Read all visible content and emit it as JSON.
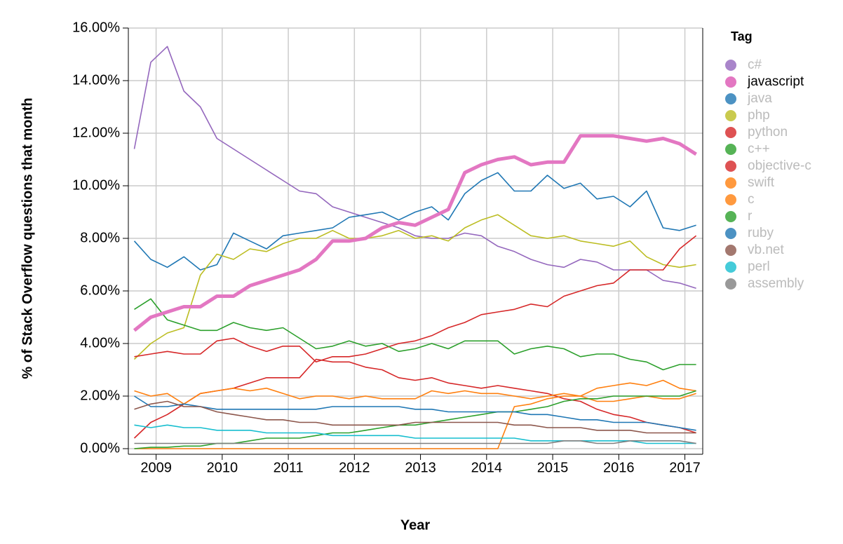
{
  "chart_data": {
    "type": "line",
    "y_label": "% of Stack Overflow questions that month",
    "x_label": "Year",
    "legend_title": "Tag",
    "legend_position": "right",
    "grid": true,
    "xlim": [
      2008.58,
      2017.27
    ],
    "xticks": [
      2009,
      2010,
      2011,
      2012,
      2013,
      2014,
      2015,
      2016,
      2017
    ],
    "ylim": [
      0,
      16
    ],
    "yticks": [
      {
        "value": 0,
        "label": "0.00%"
      },
      {
        "value": 2,
        "label": "2.00%"
      },
      {
        "value": 4,
        "label": "4.00%"
      },
      {
        "value": 6,
        "label": "6.00%"
      },
      {
        "value": 8,
        "label": "8.00%"
      },
      {
        "value": 10,
        "label": "10.00%"
      },
      {
        "value": 12,
        "label": "12.00%"
      },
      {
        "value": 14,
        "label": "14.00%"
      },
      {
        "value": 16,
        "label": "16.00%"
      }
    ],
    "x": [
      2008.67,
      2008.92,
      2009.17,
      2009.42,
      2009.67,
      2009.92,
      2010.17,
      2010.42,
      2010.67,
      2010.92,
      2011.17,
      2011.42,
      2011.67,
      2011.92,
      2012.17,
      2012.42,
      2012.67,
      2012.92,
      2013.17,
      2013.42,
      2013.67,
      2013.92,
      2014.17,
      2014.42,
      2014.67,
      2014.92,
      2015.17,
      2015.42,
      2015.67,
      2015.92,
      2016.17,
      2016.42,
      2016.67,
      2016.92,
      2017.17
    ],
    "series": [
      {
        "name": "c#",
        "color": "#9467bd",
        "values": [
          11.4,
          14.7,
          15.3,
          13.6,
          13.0,
          11.8,
          11.4,
          11.0,
          10.6,
          10.2,
          9.8,
          9.7,
          9.2,
          9.0,
          8.8,
          8.6,
          8.4,
          8.1,
          8.0,
          8.0,
          8.2,
          8.1,
          7.7,
          7.5,
          7.2,
          7.0,
          6.9,
          7.2,
          7.1,
          6.8,
          6.8,
          6.8,
          6.4,
          6.3,
          6.1
        ]
      },
      {
        "name": "javascript",
        "color": "#e377c2",
        "highlighted": true,
        "values": [
          4.5,
          5.0,
          5.2,
          5.4,
          5.4,
          5.8,
          5.8,
          6.2,
          6.4,
          6.6,
          6.8,
          7.2,
          7.9,
          7.9,
          8.0,
          8.4,
          8.6,
          8.5,
          8.8,
          9.1,
          10.5,
          10.8,
          11.0,
          11.1,
          10.8,
          10.9,
          10.9,
          11.9,
          11.9,
          11.9,
          11.8,
          11.7,
          11.8,
          11.6,
          11.2
        ]
      },
      {
        "name": "java",
        "color": "#1f77b4",
        "values": [
          7.9,
          7.2,
          6.9,
          7.3,
          6.8,
          7.0,
          8.2,
          7.9,
          7.6,
          8.1,
          8.2,
          8.3,
          8.4,
          8.8,
          8.9,
          9.0,
          8.7,
          9.0,
          9.2,
          8.7,
          9.7,
          10.2,
          10.5,
          9.8,
          9.8,
          10.4,
          9.9,
          10.1,
          9.5,
          9.6,
          9.2,
          9.8,
          8.4,
          8.3,
          8.5
        ]
      },
      {
        "name": "php",
        "color": "#bcbd22",
        "values": [
          3.4,
          4.0,
          4.4,
          4.6,
          6.6,
          7.4,
          7.2,
          7.6,
          7.5,
          7.8,
          8.0,
          8.0,
          8.3,
          8.0,
          8.0,
          8.1,
          8.3,
          8.0,
          8.1,
          7.9,
          8.4,
          8.7,
          8.9,
          8.5,
          8.1,
          8.0,
          8.1,
          7.9,
          7.8,
          7.7,
          7.9,
          7.3,
          7.0,
          6.9,
          7.0
        ]
      },
      {
        "name": "python",
        "color": "#d62728",
        "values": [
          3.5,
          3.6,
          3.7,
          3.6,
          3.6,
          4.1,
          4.2,
          3.9,
          3.7,
          3.9,
          3.9,
          3.3,
          3.5,
          3.5,
          3.6,
          3.8,
          4.0,
          4.1,
          4.3,
          4.6,
          4.8,
          5.1,
          5.2,
          5.3,
          5.5,
          5.4,
          5.8,
          6.0,
          6.2,
          6.3,
          6.8,
          6.8,
          6.8,
          7.6,
          8.1
        ]
      },
      {
        "name": "c++",
        "color": "#2ca02c",
        "values": [
          5.3,
          5.7,
          4.9,
          4.7,
          4.5,
          4.5,
          4.8,
          4.6,
          4.5,
          4.6,
          4.2,
          3.8,
          3.9,
          4.1,
          3.9,
          4.0,
          3.7,
          3.8,
          4.0,
          3.8,
          4.1,
          4.1,
          4.1,
          3.6,
          3.8,
          3.9,
          3.8,
          3.5,
          3.6,
          3.6,
          3.4,
          3.3,
          3.0,
          3.2,
          3.2
        ]
      },
      {
        "name": "objective-c",
        "color": "#d62728",
        "values": [
          0.4,
          1.0,
          1.3,
          1.7,
          2.1,
          2.2,
          2.3,
          2.5,
          2.7,
          2.7,
          2.7,
          3.4,
          3.3,
          3.3,
          3.1,
          3.0,
          2.7,
          2.6,
          2.7,
          2.5,
          2.4,
          2.3,
          2.4,
          2.3,
          2.2,
          2.1,
          1.9,
          1.8,
          1.5,
          1.3,
          1.2,
          1.0,
          0.9,
          0.8,
          0.6
        ]
      },
      {
        "name": "swift",
        "color": "#ff7f0e",
        "values": [
          0,
          0,
          0,
          0,
          0,
          0,
          0,
          0,
          0,
          0,
          0,
          0,
          0,
          0,
          0,
          0,
          0,
          0,
          0,
          0,
          0,
          0,
          0,
          1.6,
          1.7,
          1.9,
          2.0,
          2.0,
          1.8,
          1.8,
          1.9,
          2.0,
          1.9,
          1.9,
          2.1
        ]
      },
      {
        "name": "c",
        "color": "#ff7f0e",
        "values": [
          2.2,
          2.0,
          2.1,
          1.7,
          2.1,
          2.2,
          2.3,
          2.2,
          2.3,
          2.1,
          1.9,
          2.0,
          2.0,
          1.9,
          2.0,
          1.9,
          1.9,
          1.9,
          2.2,
          2.1,
          2.2,
          2.1,
          2.1,
          2.0,
          1.9,
          2.0,
          2.1,
          2.0,
          2.3,
          2.4,
          2.5,
          2.4,
          2.6,
          2.3,
          2.2
        ]
      },
      {
        "name": "r",
        "color": "#2ca02c",
        "values": [
          0,
          0.05,
          0.05,
          0.1,
          0.1,
          0.2,
          0.2,
          0.3,
          0.4,
          0.4,
          0.4,
          0.5,
          0.6,
          0.6,
          0.7,
          0.8,
          0.9,
          0.9,
          1.0,
          1.1,
          1.2,
          1.3,
          1.4,
          1.4,
          1.5,
          1.6,
          1.8,
          1.9,
          1.9,
          2.0,
          2.0,
          2.0,
          2.0,
          2.0,
          2.2
        ]
      },
      {
        "name": "ruby",
        "color": "#1f77b4",
        "values": [
          2.0,
          1.6,
          1.6,
          1.7,
          1.6,
          1.5,
          1.5,
          1.5,
          1.5,
          1.5,
          1.5,
          1.5,
          1.6,
          1.6,
          1.6,
          1.6,
          1.6,
          1.5,
          1.5,
          1.4,
          1.4,
          1.4,
          1.4,
          1.4,
          1.3,
          1.3,
          1.2,
          1.1,
          1.1,
          1.0,
          1.0,
          1.0,
          0.9,
          0.8,
          0.7
        ]
      },
      {
        "name": "vb.net",
        "color": "#8c564b",
        "values": [
          1.5,
          1.7,
          1.8,
          1.6,
          1.6,
          1.4,
          1.3,
          1.2,
          1.1,
          1.1,
          1.0,
          1.0,
          0.9,
          0.9,
          0.9,
          0.9,
          0.9,
          1.0,
          1.0,
          1.0,
          1.0,
          1.0,
          1.0,
          0.9,
          0.9,
          0.8,
          0.8,
          0.8,
          0.7,
          0.7,
          0.7,
          0.6,
          0.6,
          0.6,
          0.6
        ]
      },
      {
        "name": "perl",
        "color": "#17becf",
        "values": [
          0.9,
          0.8,
          0.9,
          0.8,
          0.8,
          0.7,
          0.7,
          0.7,
          0.6,
          0.6,
          0.6,
          0.6,
          0.5,
          0.5,
          0.5,
          0.5,
          0.5,
          0.4,
          0.4,
          0.4,
          0.4,
          0.4,
          0.4,
          0.4,
          0.3,
          0.3,
          0.3,
          0.3,
          0.3,
          0.3,
          0.3,
          0.2,
          0.2,
          0.2,
          0.2
        ]
      },
      {
        "name": "assembly",
        "color": "#7f7f7f",
        "values": [
          0.2,
          0.2,
          0.2,
          0.2,
          0.2,
          0.2,
          0.2,
          0.2,
          0.2,
          0.2,
          0.2,
          0.2,
          0.2,
          0.2,
          0.2,
          0.2,
          0.2,
          0.2,
          0.2,
          0.2,
          0.2,
          0.2,
          0.2,
          0.2,
          0.2,
          0.2,
          0.3,
          0.3,
          0.2,
          0.2,
          0.3,
          0.3,
          0.3,
          0.3,
          0.2
        ]
      }
    ]
  }
}
